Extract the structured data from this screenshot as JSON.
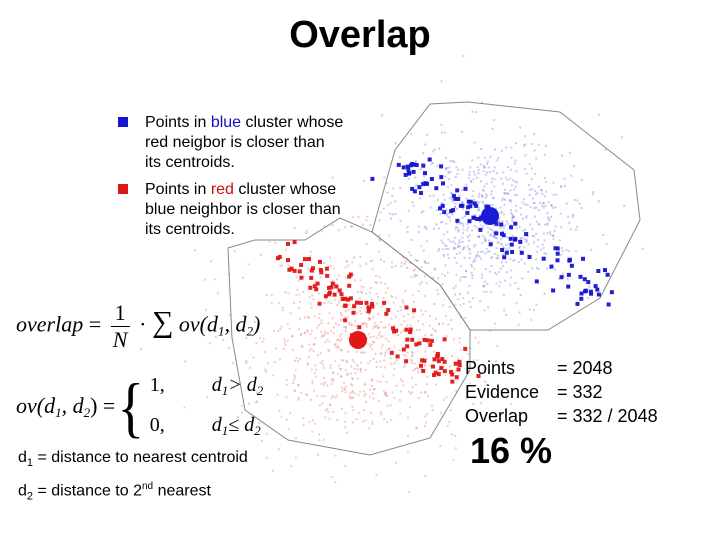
{
  "title": "Overlap",
  "legend": {
    "blue": {
      "color": "#1515d0",
      "pre": "Points in ",
      "word": "blue",
      "post": " cluster whose",
      "line2": "red neigbor is closer than",
      "line3": "its centroids."
    },
    "red": {
      "color": "#e01515",
      "pre": "Points in ",
      "word": "red",
      "post": " cluster whose",
      "line2": "blue neighbor is closer than",
      "line3": "its centroids."
    }
  },
  "formula_overlap": {
    "lhs": "overlap",
    "eq": "=",
    "num": "1",
    "den": "N",
    "dot": "·",
    "sum": "∑",
    "ov": "ov",
    "args": "(d",
    "s1": "1",
    "comma": ", d",
    "s2": "2",
    "close": ")"
  },
  "formula_ov": {
    "lhs": "ov",
    "args": "(d",
    "s1": "1",
    "comma": ", d",
    "s2": "2",
    "close": ") =",
    "case1_val": "1,",
    "case1_cond": "d",
    "case1_s1": "1",
    "case1_op": " > d",
    "case1_s2": "2",
    "case2_val": "0,",
    "case2_cond": "d",
    "case2_s1": "1",
    "case2_op": " ≤ d",
    "case2_s2": "2"
  },
  "definitions": {
    "d1_sym": "d",
    "d1_sub": "1",
    "d1_text": " = distance to nearest centroid",
    "d2_sym": "d",
    "d2_sub": "2",
    "d2_text_a": " = distance to 2",
    "d2_sup": "nd",
    "d2_text_b": " nearest"
  },
  "stats": {
    "points_label": "Points",
    "points_value": "= 2048",
    "evidence_label": "Evidence",
    "evidence_value": "= 332",
    "overlap_label": "Overlap",
    "overlap_value": "= 332 / 2048"
  },
  "result": "16 %"
}
